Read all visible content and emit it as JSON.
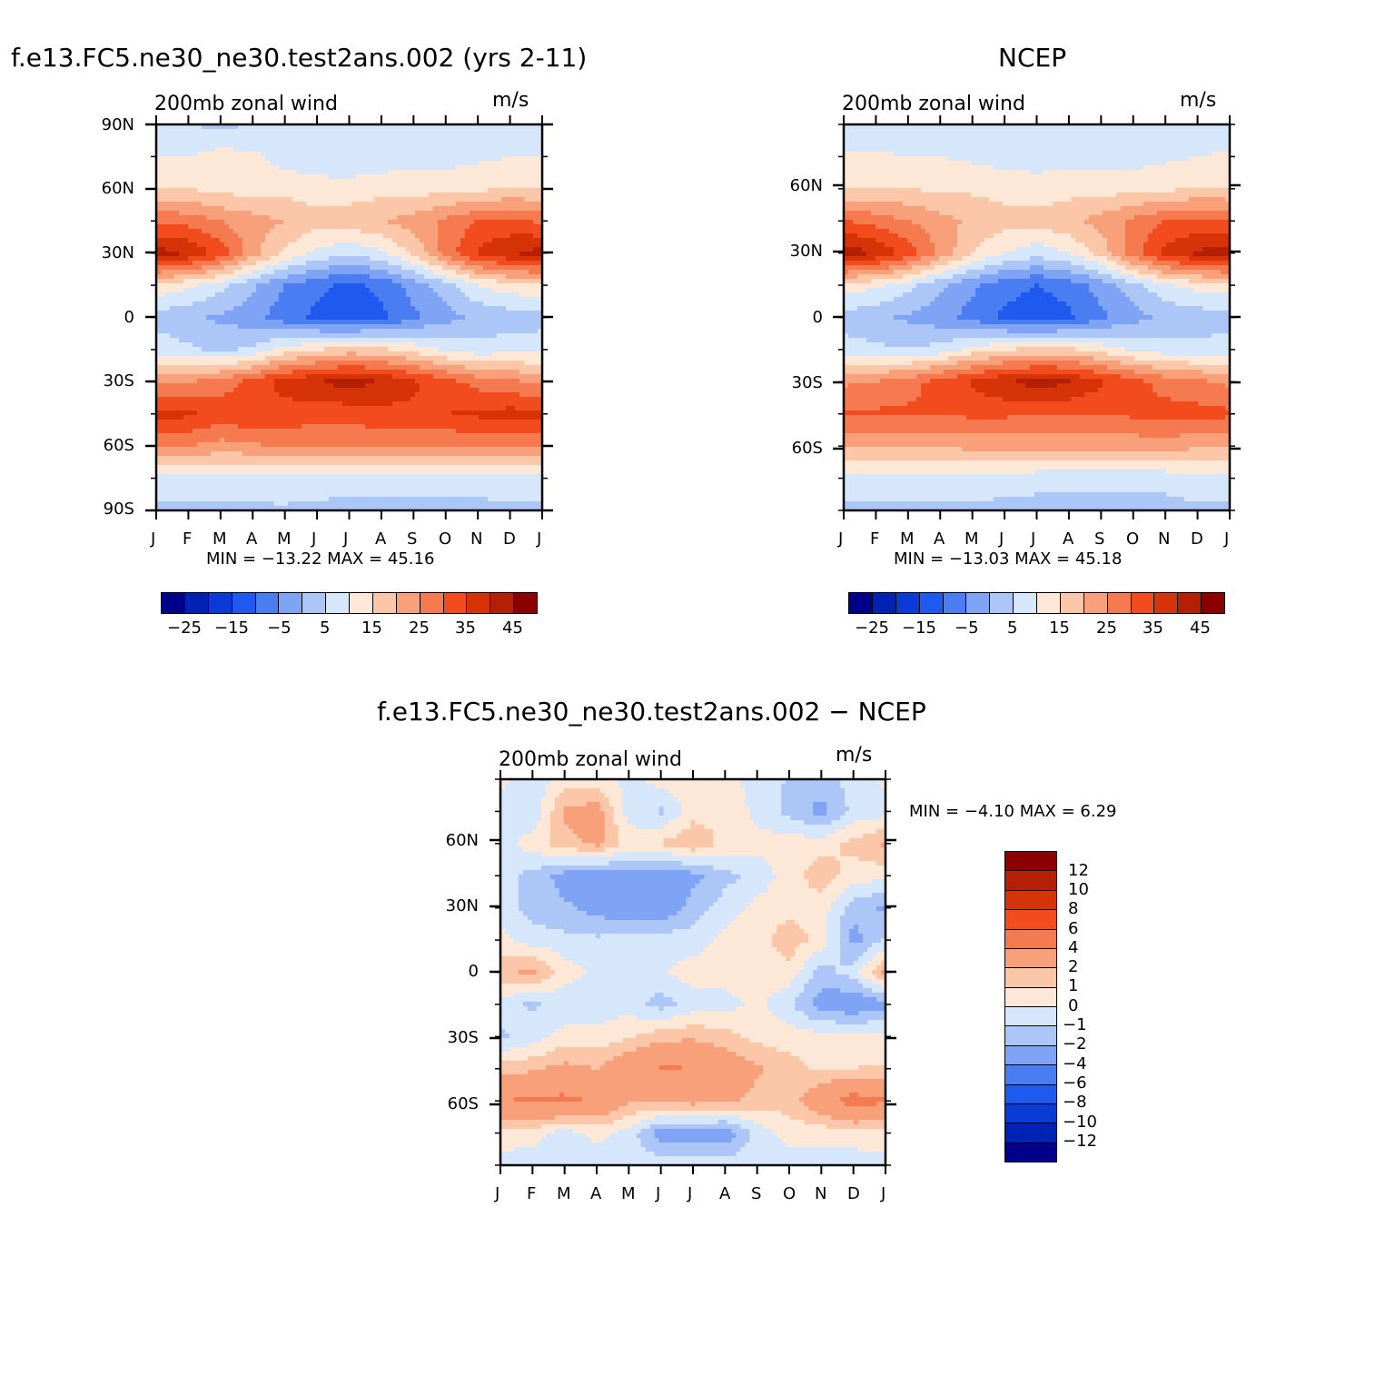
{
  "panels": [
    {
      "title": "f.e13.FC5.ne30_ne30.test2ans.002 (yrs 2-11)",
      "subtitle": "200mb zonal wind",
      "units": "m/s",
      "stats": "MIN = −13.22 MAX =   45.16",
      "y_ticks": [
        "90N",
        "60N",
        "30N",
        "0",
        "30S",
        "60S",
        "90S"
      ],
      "x_ticks": [
        "J",
        "F",
        "M",
        "A",
        "M",
        "J",
        "J",
        "A",
        "S",
        "O",
        "N",
        "D",
        "J"
      ],
      "colorbar_labels": [
        "−25",
        "−15",
        "−5",
        "5",
        "15",
        "25",
        "35",
        "45"
      ]
    },
    {
      "title": "NCEP",
      "subtitle": "200mb zonal wind",
      "units": "m/s",
      "stats": "MIN = −13.03 MAX =   45.18",
      "y_ticks": [
        "60N",
        "30N",
        "0",
        "30S",
        "60S"
      ],
      "x_ticks": [
        "J",
        "F",
        "M",
        "A",
        "M",
        "J",
        "J",
        "A",
        "S",
        "O",
        "N",
        "D",
        "J"
      ],
      "colorbar_labels": [
        "−25",
        "−15",
        "−5",
        "5",
        "15",
        "25",
        "35",
        "45"
      ]
    },
    {
      "title": "f.e13.FC5.ne30_ne30.test2ans.002 − NCEP",
      "subtitle": "200mb zonal wind",
      "units": "m/s",
      "stats": "MIN =   −4.10 MAX =    6.29",
      "y_ticks": [
        "60N",
        "30N",
        "0",
        "30S",
        "60S"
      ],
      "x_ticks": [
        "J",
        "F",
        "M",
        "A",
        "M",
        "J",
        "J",
        "A",
        "S",
        "O",
        "N",
        "D",
        "J"
      ],
      "colorbar_labels": [
        "12",
        "10",
        "8",
        "6",
        "4",
        "2",
        "1",
        "0",
        "−1",
        "−2",
        "−4",
        "−6",
        "−8",
        "−10",
        "−12"
      ]
    }
  ],
  "chart_data": [
    {
      "type": "heatmap",
      "title": "f.e13.FC5.ne30_ne30.test2ans.002 (yrs 2-11)",
      "subtitle": "200mb zonal wind",
      "units": "m/s",
      "x": [
        "J",
        "F",
        "M",
        "A",
        "M",
        "J",
        "J",
        "A",
        "S",
        "O",
        "N",
        "D",
        "J"
      ],
      "y": [
        90,
        75,
        60,
        45,
        30,
        15,
        0,
        -15,
        -30,
        -45,
        -60,
        -75,
        -90
      ],
      "ylim": [
        -90,
        90
      ],
      "min": -13.22,
      "max": 45.16,
      "levels": [
        -25,
        -20,
        -15,
        -10,
        -5,
        0,
        5,
        10,
        15,
        20,
        25,
        30,
        35,
        40,
        45
      ],
      "colors": [
        "#00008b",
        "#0022b4",
        "#0a3bd6",
        "#1f5af0",
        "#4a7cf2",
        "#7fa3f5",
        "#adc6f8",
        "#d6e6fb",
        "#fde8d7",
        "#fcc7a8",
        "#f8a07a",
        "#f57a4f",
        "#f24c1e",
        "#d73309",
        "#b51f06",
        "#8b0000"
      ],
      "z": [
        [
          5,
          5,
          4,
          5,
          5,
          5,
          5,
          5,
          5,
          5,
          5,
          5,
          5
        ],
        [
          10,
          10,
          12,
          11,
          8,
          7,
          6,
          7,
          8,
          8,
          9,
          10,
          10
        ],
        [
          15,
          15,
          13,
          13,
          13,
          12,
          12,
          13,
          13,
          13,
          14,
          15,
          15
        ],
        [
          29,
          28,
          25,
          22,
          20,
          17,
          18,
          20,
          22,
          26,
          30,
          31,
          29
        ],
        [
          42,
          40,
          33,
          22,
          14,
          9,
          6,
          9,
          16,
          27,
          36,
          40,
          42
        ],
        [
          14,
          11,
          7,
          1,
          -5,
          -9,
          -11,
          -9,
          -3,
          3,
          10,
          13,
          14
        ],
        [
          3,
          1,
          -1,
          -3,
          -8,
          -11,
          -13,
          -11,
          -6,
          -2,
          1,
          2,
          3
        ],
        [
          8,
          6,
          4,
          6,
          12,
          15,
          17,
          16,
          13,
          9,
          7,
          8,
          8
        ],
        [
          24,
          25,
          27,
          32,
          37,
          40,
          42,
          40,
          36,
          32,
          28,
          26,
          24
        ],
        [
          37,
          36,
          33,
          35,
          33,
          32,
          32,
          33,
          34,
          35,
          36,
          37,
          37
        ],
        [
          25,
          25,
          23,
          24,
          26,
          26,
          26,
          26,
          25,
          25,
          26,
          25,
          25
        ],
        [
          8,
          8,
          8,
          8,
          9,
          9,
          8,
          8,
          8,
          8,
          8,
          8,
          8
        ],
        [
          4,
          4,
          4,
          4,
          4,
          3,
          3,
          3,
          3,
          3,
          3,
          4,
          4
        ]
      ]
    },
    {
      "type": "heatmap",
      "title": "NCEP",
      "subtitle": "200mb zonal wind",
      "units": "m/s",
      "x": [
        "J",
        "F",
        "M",
        "A",
        "M",
        "J",
        "J",
        "A",
        "S",
        "O",
        "N",
        "D",
        "J"
      ],
      "y": [
        90,
        75,
        60,
        45,
        30,
        15,
        0,
        -15,
        -30,
        -45,
        -60,
        -75,
        -90
      ],
      "ylim": [
        -90,
        90
      ],
      "min": -13.03,
      "max": 45.18,
      "levels": [
        -25,
        -20,
        -15,
        -10,
        -5,
        0,
        5,
        10,
        15,
        20,
        25,
        30,
        35,
        40,
        45
      ],
      "colors": [
        "#00008b",
        "#0022b4",
        "#0a3bd6",
        "#1f5af0",
        "#4a7cf2",
        "#7fa3f5",
        "#adc6f8",
        "#d6e6fb",
        "#fde8d7",
        "#fcc7a8",
        "#f8a07a",
        "#f57a4f",
        "#f24c1e",
        "#d73309",
        "#b51f06",
        "#8b0000"
      ],
      "z": [
        [
          5,
          5,
          5,
          5,
          5,
          5,
          5,
          5,
          5,
          5,
          5,
          5,
          5
        ],
        [
          11,
          11,
          10,
          10,
          9,
          8,
          8,
          8,
          8,
          8,
          9,
          10,
          11
        ],
        [
          15,
          15,
          15,
          14,
          14,
          13,
          12,
          13,
          13,
          13,
          14,
          15,
          15
        ],
        [
          30,
          28,
          25,
          22,
          19,
          17,
          17,
          19,
          22,
          26,
          30,
          31,
          30
        ],
        [
          43,
          40,
          33,
          24,
          15,
          10,
          7,
          10,
          17,
          28,
          37,
          41,
          43
        ],
        [
          13,
          11,
          7,
          1,
          -4,
          -8,
          -10,
          -8,
          -3,
          3,
          9,
          12,
          13
        ],
        [
          3,
          1,
          -1,
          -3,
          -7,
          -11,
          -13,
          -11,
          -6,
          -2,
          1,
          2,
          3
        ],
        [
          7,
          6,
          5,
          7,
          12,
          15,
          16,
          16,
          13,
          9,
          7,
          7,
          7
        ],
        [
          24,
          25,
          28,
          32,
          36,
          40,
          42,
          41,
          36,
          32,
          28,
          26,
          24
        ],
        [
          31,
          31,
          31,
          31,
          31,
          31,
          30,
          30,
          30,
          31,
          32,
          32,
          31
        ],
        [
          20,
          20,
          20,
          20,
          22,
          22,
          22,
          22,
          22,
          22,
          22,
          21,
          20
        ],
        [
          8,
          8,
          8,
          8,
          8,
          8,
          7,
          7,
          7,
          7,
          7,
          8,
          8
        ],
        [
          4,
          4,
          4,
          4,
          4,
          3,
          3,
          3,
          3,
          3,
          3,
          4,
          4
        ]
      ]
    },
    {
      "type": "heatmap",
      "title": "f.e13.FC5.ne30_ne30.test2ans.002 − NCEP",
      "subtitle": "200mb zonal wind",
      "units": "m/s",
      "x": [
        "J",
        "F",
        "M",
        "A",
        "M",
        "J",
        "J",
        "A",
        "S",
        "O",
        "N",
        "D",
        "J"
      ],
      "y": [
        90,
        75,
        60,
        45,
        30,
        15,
        0,
        -15,
        -30,
        -45,
        -60,
        -75,
        -90
      ],
      "ylim": [
        -90,
        90
      ],
      "min": -4.1,
      "max": 6.29,
      "levels": [
        -12,
        -10,
        -8,
        -6,
        -4,
        -2,
        -1,
        0,
        1,
        2,
        4,
        6,
        8,
        10,
        12
      ],
      "colors": [
        "#00008b",
        "#0022b4",
        "#0a3bd6",
        "#1f5af0",
        "#4a7cf2",
        "#7fa3f5",
        "#adc6f8",
        "#d6e6fb",
        "#fde8d7",
        "#fcc7a8",
        "#f8a07a",
        "#f57a4f",
        "#f24c1e",
        "#d73309",
        "#b51f06",
        "#8b0000"
      ],
      "z": [
        [
          0.3,
          -0.6,
          0.5,
          0.4,
          -0.3,
          0.4,
          0.5,
          0.3,
          -0.4,
          -1.1,
          -1.4,
          -0.6,
          0.3
        ],
        [
          -0.5,
          -0.8,
          2.2,
          2.6,
          -0.5,
          -1.2,
          0.6,
          0.8,
          -0.3,
          -1.3,
          -2.4,
          -0.7,
          -0.5
        ],
        [
          -0.4,
          0.5,
          1.6,
          2.3,
          0.6,
          1.1,
          1.8,
          0.7,
          0.4,
          0.5,
          0.6,
          1.3,
          2.2
        ],
        [
          -0.7,
          -1.3,
          -2.5,
          -2.8,
          -2.5,
          -2.9,
          -2.4,
          -1.3,
          -0.8,
          0.6,
          1.5,
          0.6,
          0.3
        ],
        [
          -0.6,
          -1.4,
          -1.8,
          -2.4,
          -3.1,
          -3.2,
          -1.5,
          -0.6,
          0.4,
          0.7,
          0.5,
          -1.6,
          -2.2
        ],
        [
          0.4,
          -0.5,
          -0.7,
          -0.8,
          -0.5,
          -0.3,
          -0.6,
          0.4,
          0.6,
          1.6,
          0.6,
          -2.4,
          -0.8
        ],
        [
          1.6,
          2.3,
          0.5,
          -0.3,
          -0.5,
          -0.2,
          0.6,
          0.5,
          0.7,
          0.6,
          -1.4,
          -0.6,
          2.3
        ],
        [
          -0.5,
          -1.2,
          -0.7,
          -0.6,
          -0.4,
          -1.5,
          -0.6,
          -0.4,
          0.3,
          -0.8,
          -2.6,
          -3.0,
          -2.4
        ],
        [
          -1.2,
          -0.5,
          0.4,
          0.3,
          0.8,
          1.6,
          1.8,
          1.4,
          0.7,
          0.5,
          0.4,
          0.5,
          0.3
        ],
        [
          1.5,
          1.8,
          2.4,
          2.0,
          3.3,
          4.2,
          4.0,
          3.0,
          2.2,
          1.4,
          0.8,
          1.0,
          1.1
        ],
        [
          4.0,
          4.3,
          4.4,
          3.8,
          2.1,
          2.2,
          2.5,
          2.3,
          1.6,
          1.5,
          3.2,
          4.8,
          4.2
        ],
        [
          0.5,
          0.4,
          -0.5,
          0.3,
          -0.4,
          -2.6,
          -2.5,
          -2.8,
          -0.6,
          0.4,
          0.3,
          0.6,
          0.5
        ],
        [
          -0.4,
          -0.5,
          -0.6,
          -0.5,
          -0.4,
          -0.3,
          -0.4,
          -0.3,
          -0.5,
          -0.5,
          -0.4,
          -0.6,
          -0.4
        ]
      ]
    }
  ]
}
